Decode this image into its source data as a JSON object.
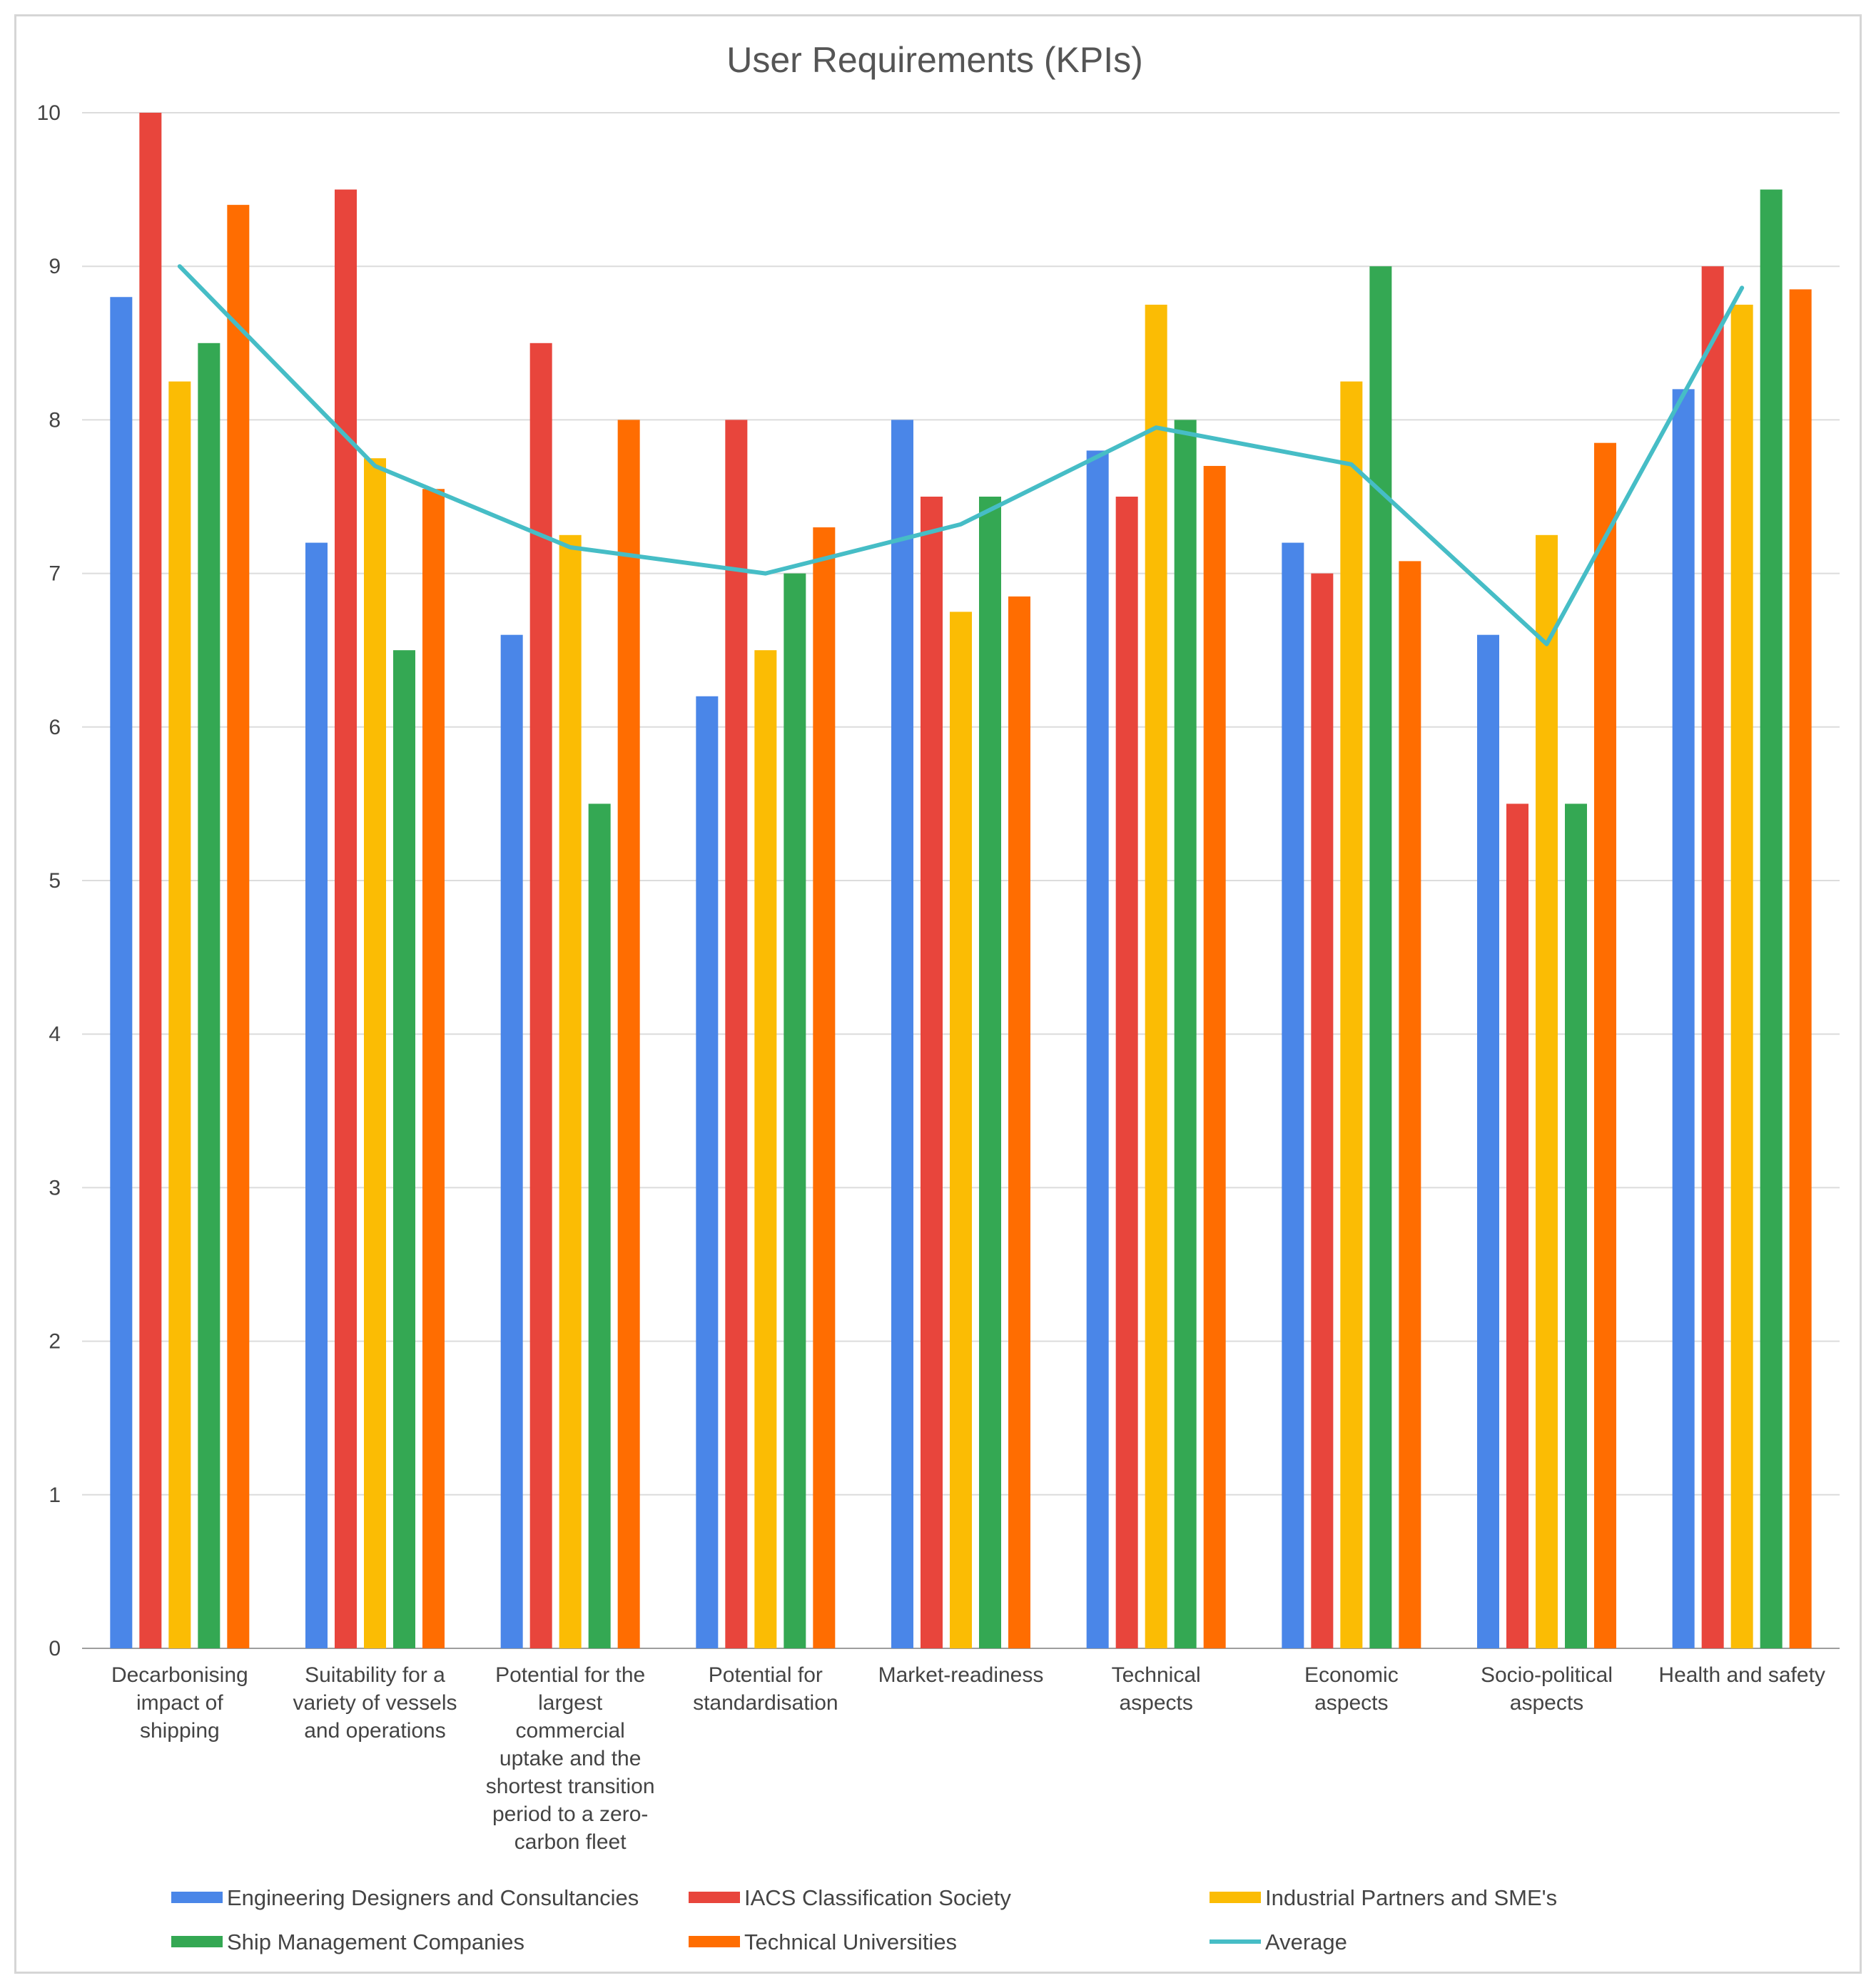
{
  "chart_data": {
    "type": "bar",
    "title": "User Requirements (KPIs)",
    "xlabel": "",
    "ylabel": "",
    "ylim": [
      0,
      10
    ],
    "yticks": [
      "0",
      "1",
      "2",
      "3",
      "4",
      "5",
      "6",
      "7",
      "8",
      "9",
      "10"
    ],
    "grid": true,
    "legend_position": "bottom",
    "categories": [
      [
        "Decarbonising",
        "impact of",
        "shipping"
      ],
      [
        "Suitability for a",
        "variety of vessels",
        "and operations"
      ],
      [
        "Potential for the",
        "largest",
        "commercial",
        "uptake and the",
        "shortest transition",
        "period to a zero-",
        "carbon fleet"
      ],
      [
        "Potential for",
        "standardisation"
      ],
      [
        "Market-readiness"
      ],
      [
        "Technical",
        "aspects"
      ],
      [
        "Economic",
        "aspects"
      ],
      [
        "Socio-political",
        "aspects"
      ],
      [
        "Health and safety"
      ]
    ],
    "series": [
      {
        "name": "Engineering Designers and Consultancies",
        "color": "#4a86e8",
        "values": [
          8.8,
          7.2,
          6.6,
          6.2,
          8.0,
          7.8,
          7.2,
          6.6,
          8.2
        ]
      },
      {
        "name": "IACS Classification Society",
        "color": "#e8453c",
        "values": [
          10.0,
          9.5,
          8.5,
          8.0,
          7.5,
          7.5,
          7.0,
          5.5,
          9.0
        ]
      },
      {
        "name": "Industrial Partners and SME's",
        "color": "#fbbc04",
        "values": [
          8.25,
          7.75,
          7.25,
          6.5,
          6.75,
          8.75,
          8.25,
          7.25,
          8.75
        ]
      },
      {
        "name": "Ship Management Companies",
        "color": "#34a853",
        "values": [
          8.5,
          6.5,
          5.5,
          7.0,
          7.5,
          8.0,
          9.0,
          5.5,
          9.5
        ]
      },
      {
        "name": "Technical Universities",
        "color": "#ff6d01",
        "values": [
          9.4,
          7.55,
          8.0,
          7.3,
          6.85,
          7.7,
          7.08,
          7.85,
          8.85
        ]
      }
    ],
    "line_series": {
      "name": "Average",
      "color": "#46bdc6",
      "values": [
        9.0,
        7.7,
        7.17,
        7.0,
        7.32,
        7.95,
        7.71,
        6.54,
        8.86
      ]
    }
  }
}
